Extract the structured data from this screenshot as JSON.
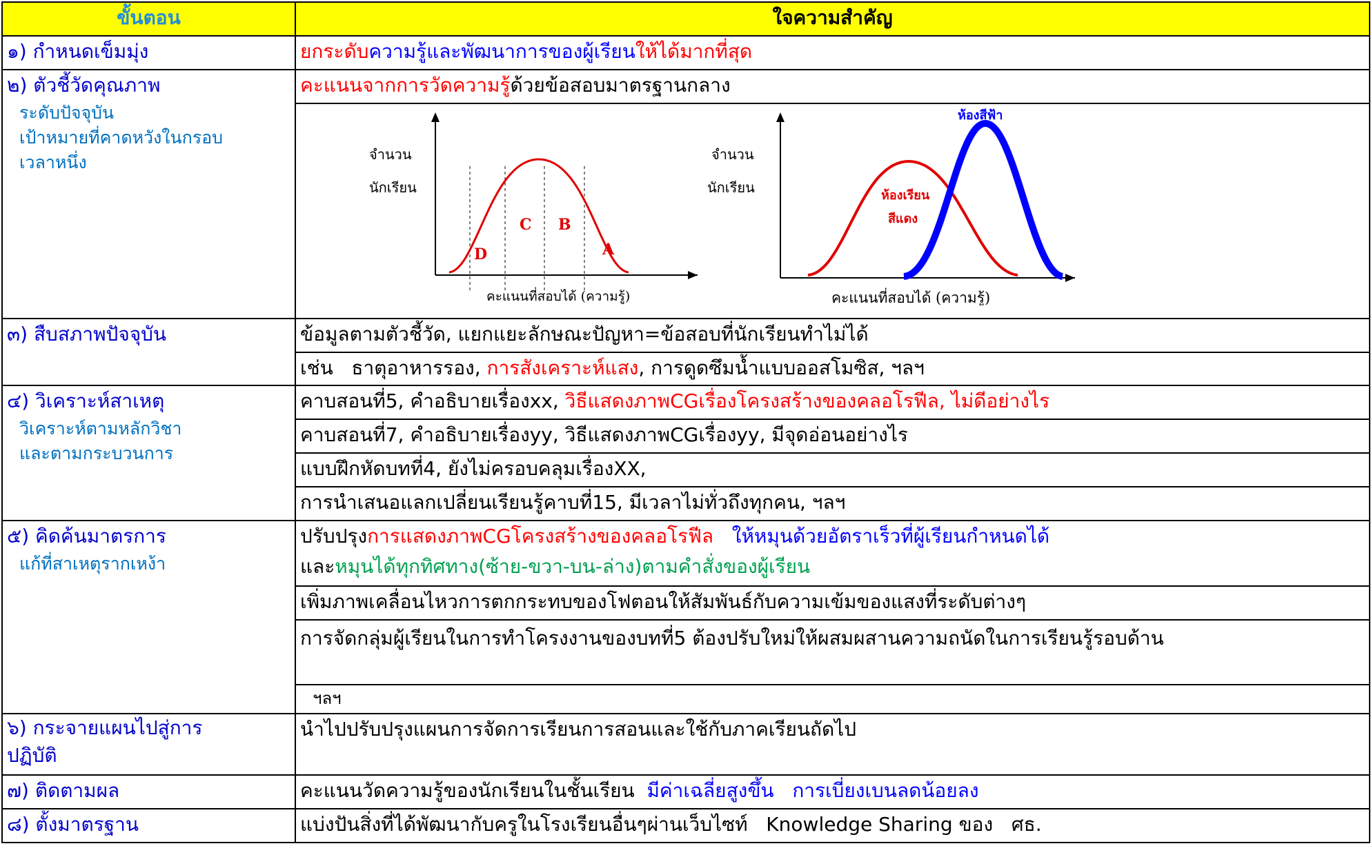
{
  "header": {
    "step": "ขั้นตอน",
    "idea": "ใจความสำคัญ"
  },
  "steps": [
    {
      "label": "๑) กำหนดเข็มมุ่ง"
    },
    {
      "label": "๒) ตัวชี้วัดคุณภาพ",
      "sub": [
        "ระดับปัจจุบัน",
        "เป้าหมายที่คาดหวังในกรอบ",
        "เวลาหนึ่ง"
      ]
    },
    {
      "label": "๓) สืบสภาพปัจจุบัน"
    },
    {
      "label": "๔) วิเคราะห์สาเหตุ",
      "sub": [
        "วิเคราะห์ตามหลักวิชา",
        "และตามกระบวนการ"
      ]
    },
    {
      "label": "๕) คิดค้นมาตรการ",
      "sub": [
        "แก้ที่สาเหตุรากเหง้า"
      ]
    },
    {
      "label": "๖) กระจายแผนไปสู่การ",
      "label2": "ปฏิบัติ"
    },
    {
      "label": "๗) ติดตามผล"
    },
    {
      "label": "๘) ตั้งมาตรฐาน"
    }
  ],
  "rows": {
    "r1": {
      "a": "ยกระดับ",
      "b": "ความรู้และพัฒนาการของผู้เรียน",
      "c": "ให้ได้มากที่สุด"
    },
    "r2": {
      "a": "คะแนนจากการวัดความรู้",
      "b": "ด้วยข้อสอบมาตรฐานกลาง"
    },
    "r3a": "ข้อมูลตามตัวชี้วัด, แยกแยะลักษณะปัญหา=ข้อสอบที่นักเรียนทำไม่ได้",
    "r3b": {
      "a": "เช่น   ธาตุอาหารรอง, ",
      "b": "การสังเคราะห์แสง",
      "c": ", การดูดซึมน้ำแบบออสโมซิส, ฯลฯ"
    },
    "r4a": {
      "a": "คาบสอนที่5, คำอธิบายเรื่องxx, ",
      "b": "วิธีแสดงภาพCGเรื่องโครงสร้างของคลอโรฟีล, ไม่ดีอย่างไร"
    },
    "r4b": "คาบสอนที่7, คำอธิบายเรื่องyy, วิธีแสดงภาพCGเรื่องyy, มีจุดอ่อนอย่างไร",
    "r4c": "แบบฝึกหัดบทที่4, ยังไม่ครอบคลุมเรื่องXX,",
    "r4d": "การนำเสนอแลกเปลี่ยนเรียนรู้คาบที่15, มีเวลาไม่ทั่วถึงทุกคน, ฯลฯ",
    "r5a": {
      "a": "ปรับปรุง",
      "b": "การแสดงภาพCGโครงสร้างของคลอโรฟีล",
      "c": "   ให้หมุนด้วยอัตราเร็วที่ผู้เรียนกำหนดได้"
    },
    "r5a2": {
      "a": "และ",
      "b": "หมุนได้ทุกทิศทาง(ซ้าย-ขวา-บน-ล่าง)ตามคำสั่งของผู้เรียน"
    },
    "r5b": "เพิ่มภาพเคลื่อนไหวการตกกระทบของโฟตอนให้สัมพันธ์กับความเข้มของแสงที่ระดับต่างๆ",
    "r5c": "การจัดกลุ่มผู้เรียนในการทำโครงงานของบทที่5 ต้องปรับใหม่ให้ผสมผสานความถนัดในการเรียนรู้รอบด้าน",
    "r5d": "ฯลฯ",
    "r6": "นำไปปรับปรุงแผนการจัดการเรียนการสอนและใช้กับภาคเรียนถัดไป",
    "r7": {
      "a": "คะแนนวัดความรู้ของนักเรียนในชั้นเรียน  ",
      "b": "มีค่าเฉลี่ยสูงขึ้น   การเบี่ยงเบนลดน้อยลง"
    },
    "r8": {
      "a": "แบ่งปันสิ่งที่ได้พัฒนากับครูในโรงเรียนอื่นๆผ่านเว็บไซท์  ",
      "b": " Knowledge Sharing ",
      "c": "ของ   ศธ."
    }
  },
  "graph1": {
    "ylabel1": "จำนวน",
    "ylabel2": "นักเรียน",
    "xlabel": "คะแนนที่สอบได้ (ความรู้)",
    "grades": [
      "D",
      "C",
      "B",
      "A"
    ]
  },
  "graph2": {
    "ylabel1": "จำนวน",
    "ylabel2": "นักเรียน",
    "xlabel": "คะแนนที่สอบได้ (ความรู้)",
    "red_label1": "ห้องเรียน",
    "red_label2": "สีแดง",
    "blue_label": "ห้องสีฟ้า"
  },
  "colors": {
    "header_bg": "#ffff00",
    "step": "#0000cc",
    "sub": "#0070c0",
    "red": "#ff0000",
    "blue": "#0000ff",
    "green": "#00a050"
  }
}
